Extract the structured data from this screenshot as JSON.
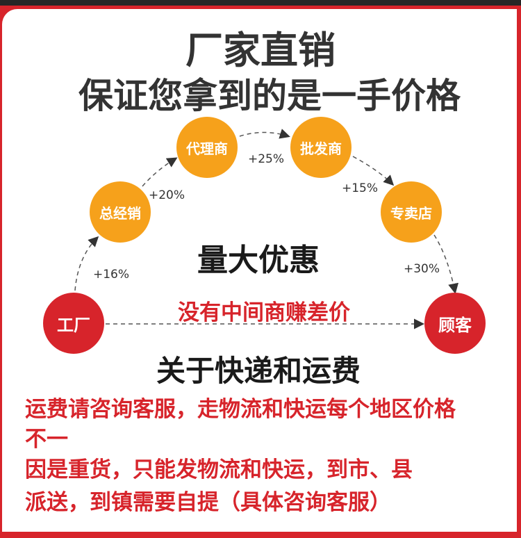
{
  "title": "厂家直销",
  "subtitle": "保证您拿到的是一手价格",
  "nodes": {
    "factory": "工厂",
    "distributor": "总经销",
    "agent": "代理商",
    "wholesaler": "批发商",
    "store": "专卖店",
    "customer": "顾客"
  },
  "markups": {
    "factory_to_distributor": "+16%",
    "distributor_to_agent": "+20%",
    "agent_to_wholesaler": "+25%",
    "wholesaler_to_store": "+15%",
    "store_to_customer": "+30%"
  },
  "center_text": "量大优惠",
  "direct_text": "没有中间商赚差价",
  "shipping_title": "关于快递和运费",
  "shipping_notes": [
    "运费请咨询客服，走物流和快运每个地区价格",
    "不一",
    "因是重货，只能发物流和快运，到市、县",
    "派送，到镇需要自提（具体咨询客服）"
  ],
  "colors": {
    "accent_red": "#d7242b",
    "node_orange": "#f6a11b",
    "frame_dark": "#262626"
  }
}
